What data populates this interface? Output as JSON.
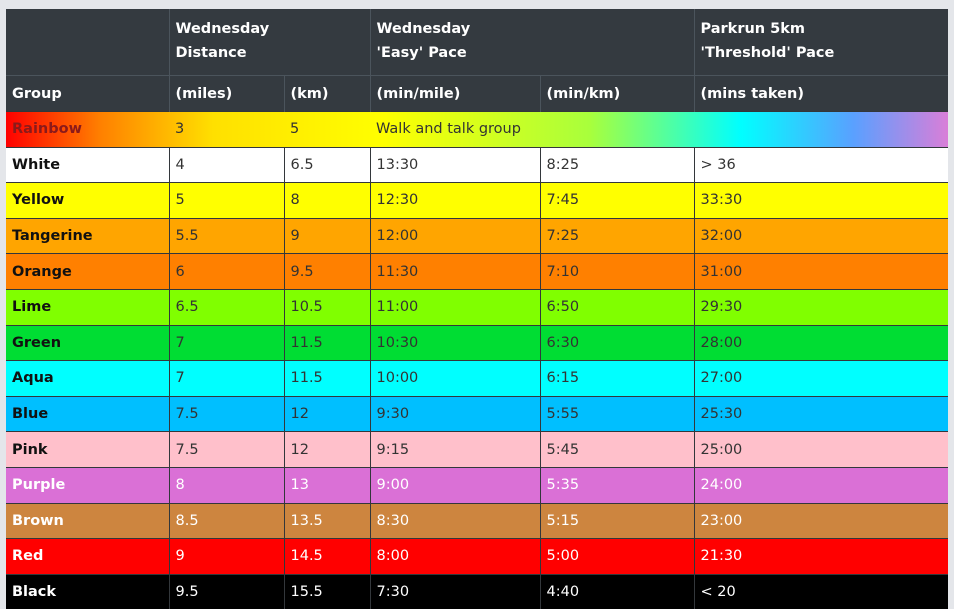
{
  "header": {
    "row1": [
      "",
      "Wednesday\nDistance",
      "Wednesday\n'Easy' Pace",
      "Parkrun 5km\n'Threshold' Pace"
    ],
    "row2": [
      "Group",
      "(miles)",
      "(km)",
      "(min/mile)",
      "(min/km)",
      "(mins taken)"
    ]
  },
  "rows": [
    {
      "group": "Rainbow",
      "miles": "3",
      "km": "5",
      "note": "Walk and talk group"
    },
    {
      "group": "White",
      "miles": "4",
      "km": "6.5",
      "pace_mile": "13:30",
      "pace_km": "8:25",
      "parkrun": "> 36",
      "bg": "#ffffff",
      "fg": "#333333",
      "gfg": "#111111"
    },
    {
      "group": "Yellow",
      "miles": "5",
      "km": "8",
      "pace_mile": "12:30",
      "pace_km": "7:45",
      "parkrun": "33:30",
      "bg": "#ffff00",
      "fg": "#333333",
      "gfg": "#111111"
    },
    {
      "group": "Tangerine",
      "miles": "5.5",
      "km": "9",
      "pace_mile": "12:00",
      "pace_km": "7:25",
      "parkrun": "32:00",
      "bg": "#ffa500",
      "fg": "#333333",
      "gfg": "#111111"
    },
    {
      "group": "Orange",
      "miles": "6",
      "km": "9.5",
      "pace_mile": "11:30",
      "pace_km": "7:10",
      "parkrun": "31:00",
      "bg": "#ff8000",
      "fg": "#333333",
      "gfg": "#111111"
    },
    {
      "group": "Lime",
      "miles": "6.5",
      "km": "10.5",
      "pace_mile": "11:00",
      "pace_km": "6:50",
      "parkrun": "29:30",
      "bg": "#80ff00",
      "fg": "#333333",
      "gfg": "#111111"
    },
    {
      "group": "Green",
      "miles": "7",
      "km": "11.5",
      "pace_mile": "10:30",
      "pace_km": "6:30",
      "parkrun": "28:00",
      "bg": "#00dd33",
      "fg": "#333333",
      "gfg": "#111111"
    },
    {
      "group": "Aqua",
      "miles": "7",
      "km": "11.5",
      "pace_mile": "10:00",
      "pace_km": "6:15",
      "parkrun": "27:00",
      "bg": "#00ffff",
      "fg": "#333333",
      "gfg": "#111111"
    },
    {
      "group": "Blue",
      "miles": "7.5",
      "km": "12",
      "pace_mile": "9:30",
      "pace_km": "5:55",
      "parkrun": "25:30",
      "bg": "#00bfff",
      "fg": "#333333",
      "gfg": "#111111"
    },
    {
      "group": "Pink",
      "miles": "7.5",
      "km": "12",
      "pace_mile": "9:15",
      "pace_km": "5:45",
      "parkrun": "25:00",
      "bg": "#ffc0cb",
      "fg": "#333333",
      "gfg": "#111111"
    },
    {
      "group": "Purple",
      "miles": "8",
      "km": "13",
      "pace_mile": "9:00",
      "pace_km": "5:35",
      "parkrun": "24:00",
      "bg": "#da70d6",
      "fg": "#ffffff",
      "gfg": "#ffffff"
    },
    {
      "group": "Brown",
      "miles": "8.5",
      "km": "13.5",
      "pace_mile": "8:30",
      "pace_km": "5:15",
      "parkrun": "23:00",
      "bg": "#cd853f",
      "fg": "#ffffff",
      "gfg": "#ffffff"
    },
    {
      "group": "Red",
      "miles": "9",
      "km": "14.5",
      "pace_mile": "8:00",
      "pace_km": "5:00",
      "parkrun": "21:30",
      "bg": "#ff0000",
      "fg": "#ffffff",
      "gfg": "#ffffff"
    },
    {
      "group": "Black",
      "miles": "9.5",
      "km": "15.5",
      "pace_mile": "7:30",
      "pace_km": "4:40",
      "parkrun": "< 20",
      "bg": "#000000",
      "fg": "#ffffff",
      "gfg": "#ffffff"
    }
  ]
}
